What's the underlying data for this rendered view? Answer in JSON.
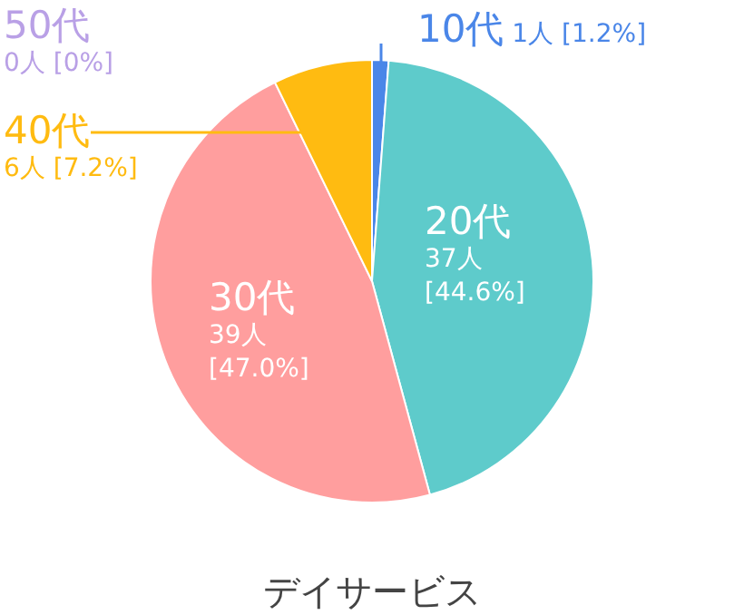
{
  "chart_data": {
    "type": "pie",
    "title": "デイサービス",
    "categories": [
      "10代",
      "20代",
      "30代",
      "40代",
      "50代"
    ],
    "values": [
      1,
      37,
      39,
      6,
      0
    ],
    "colors": [
      "#4a86e8",
      "#5ecbcb",
      "#ff9e9e",
      "#ffbb11",
      "#b9a0e6"
    ],
    "value_labels": [
      "1人 [1.2%]",
      "37人 [44.6%]",
      "39人 [47.0%]",
      "6人 [7.2%]",
      "0人 [0%]"
    ]
  }
}
